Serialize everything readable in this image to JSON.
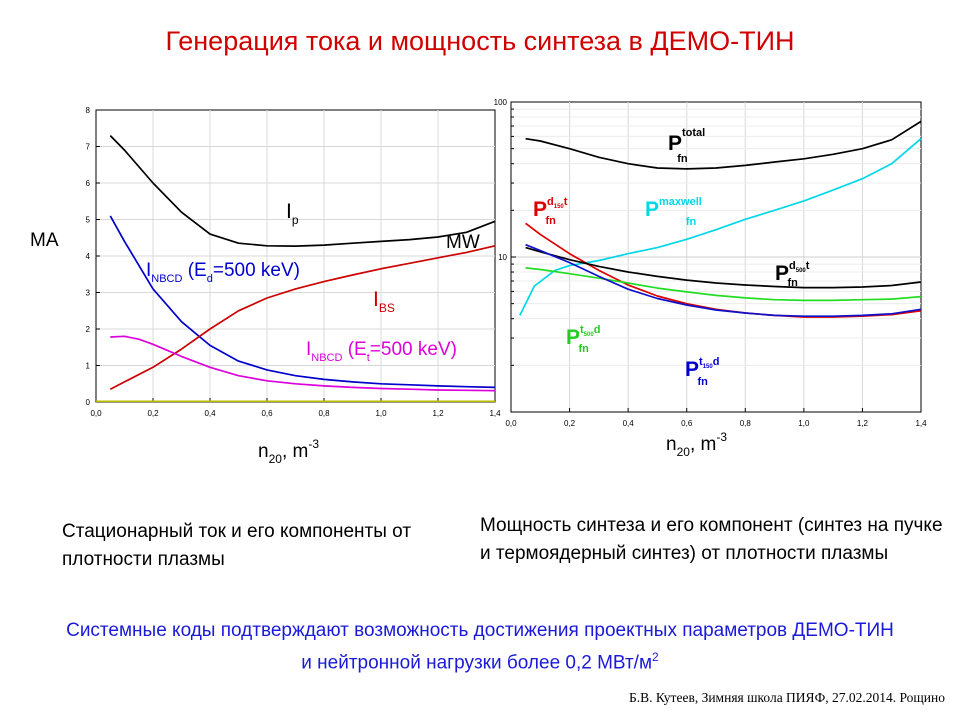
{
  "slide": {
    "title": "Генерация тока и мощность синтеза в ДЕМО-ТИН",
    "caption_left": "Стационарный ток и его компоненты от плотности плазмы",
    "caption_right": "Мощность синтеза и его компонент (синтез на пучке и термоядерный синтез) от плотности плазмы",
    "conclusion": "Системные коды подтверждают возможность достижения проектных параметров ДЕМО-ТИН и нейтронной нагрузки более 0,2 МВт/м",
    "conclusion_sup": "2",
    "footer": "Б.В. Кутеев, Зимняя школа ПИЯФ, 27.02.2014. Рощино"
  },
  "chart_data": [
    {
      "type": "line",
      "y_unit": "MA",
      "x_axis_label": {
        "main": "n",
        "sub": "20",
        "rest": ", m",
        "sup": "-3"
      },
      "xlim": [
        0,
        1.4
      ],
      "ylim": [
        0,
        8
      ],
      "x_ticks": [
        "0,0",
        "0,2",
        "0,4",
        "0,6",
        "0,8",
        "1,0",
        "1,2",
        "1,4"
      ],
      "y_ticks": [
        "0",
        "1",
        "2",
        "3",
        "4",
        "5",
        "6",
        "7",
        "8"
      ],
      "grid": true,
      "series": [
        {
          "name": "Ip",
          "color": "#000000",
          "x": [
            0.05,
            0.1,
            0.2,
            0.3,
            0.4,
            0.5,
            0.6,
            0.7,
            0.8,
            0.9,
            1.0,
            1.1,
            1.2,
            1.3,
            1.4
          ],
          "y": [
            7.3,
            6.9,
            6.0,
            5.2,
            4.6,
            4.35,
            4.28,
            4.27,
            4.3,
            4.35,
            4.4,
            4.45,
            4.52,
            4.65,
            4.95
          ]
        },
        {
          "name": "INBCD (Ed=500 keV)",
          "color": "#0000cc",
          "x": [
            0.05,
            0.1,
            0.2,
            0.3,
            0.4,
            0.5,
            0.6,
            0.7,
            0.8,
            0.9,
            1.0,
            1.1,
            1.2,
            1.3,
            1.4
          ],
          "y": [
            5.1,
            4.4,
            3.1,
            2.2,
            1.55,
            1.12,
            0.88,
            0.72,
            0.62,
            0.55,
            0.5,
            0.47,
            0.44,
            0.42,
            0.4
          ]
        },
        {
          "name": "IBS",
          "color": "#cc0000",
          "x": [
            0.05,
            0.1,
            0.2,
            0.3,
            0.4,
            0.5,
            0.6,
            0.7,
            0.8,
            0.9,
            1.0,
            1.1,
            1.2,
            1.3,
            1.4
          ],
          "y": [
            0.35,
            0.55,
            0.95,
            1.45,
            2.0,
            2.5,
            2.85,
            3.1,
            3.3,
            3.48,
            3.65,
            3.8,
            3.95,
            4.1,
            4.28
          ]
        },
        {
          "name": "INBCD (Et=500 keV)",
          "color": "#dd00dd",
          "x": [
            0.05,
            0.1,
            0.15,
            0.2,
            0.3,
            0.4,
            0.5,
            0.6,
            0.7,
            0.8,
            0.9,
            1.0,
            1.1,
            1.2,
            1.3,
            1.4
          ],
          "y": [
            1.78,
            1.8,
            1.72,
            1.58,
            1.25,
            0.95,
            0.72,
            0.58,
            0.5,
            0.44,
            0.4,
            0.37,
            0.35,
            0.33,
            0.32,
            0.31
          ]
        },
        {
          "name": "",
          "color": "#bbbb00",
          "x": [
            0.0,
            1.4
          ],
          "y": [
            0.02,
            0.02
          ]
        }
      ],
      "labels": [
        {
          "main": "I",
          "sub": "p",
          "color": "#000000"
        },
        {
          "main": "I",
          "sub": "NBCD",
          "rest": " (E",
          "sub2": "d",
          "rest2": "=500 keV)",
          "color": "#0000cc"
        },
        {
          "main": "I",
          "sub": "BS",
          "color": "#cc0000"
        },
        {
          "main": "I",
          "sub": "NBCD",
          "rest": " (E",
          "sub2": "t",
          "rest2": "=500 keV)",
          "color": "#dd00dd"
        }
      ]
    },
    {
      "type": "line",
      "y_unit": "MW",
      "y_scale": "log",
      "x_axis_label": {
        "main": "n",
        "sub": "20",
        "rest": ", m",
        "sup": "-3"
      },
      "xlim": [
        0,
        1.4
      ],
      "ylim": [
        1,
        100
      ],
      "x_ticks": [
        "0,0",
        "0,2",
        "0,4",
        "0,6",
        "0,8",
        "1,0",
        "1,2",
        "1,4"
      ],
      "y_ticks": [
        "10",
        "100"
      ],
      "grid": true,
      "series": [
        {
          "name": "P total fn",
          "color": "#000000",
          "x": [
            0.05,
            0.1,
            0.2,
            0.3,
            0.4,
            0.5,
            0.6,
            0.7,
            0.8,
            0.9,
            1.0,
            1.1,
            1.2,
            1.3,
            1.4
          ],
          "y": [
            58,
            56,
            50,
            44,
            40,
            37.5,
            37,
            37.5,
            39,
            41,
            43,
            46,
            50,
            57,
            75
          ]
        },
        {
          "name": "P maxwell fn",
          "color": "#00d8e8",
          "x": [
            0.03,
            0.08,
            0.15,
            0.2,
            0.3,
            0.4,
            0.5,
            0.6,
            0.7,
            0.8,
            0.9,
            1.0,
            1.1,
            1.2,
            1.3,
            1.4
          ],
          "y": [
            4.2,
            6.5,
            8.2,
            8.8,
            9.5,
            10.5,
            11.5,
            13,
            15,
            17.5,
            20,
            23,
            27,
            32,
            40,
            58
          ]
        },
        {
          "name": "P d150 t fn",
          "color": "#dd0000",
          "x": [
            0.05,
            0.1,
            0.2,
            0.3,
            0.4,
            0.5,
            0.6,
            0.7,
            0.8,
            0.9,
            1.0,
            1.1,
            1.2,
            1.3,
            1.4
          ],
          "y": [
            16.5,
            14,
            10.5,
            8.2,
            6.6,
            5.6,
            5.0,
            4.6,
            4.35,
            4.2,
            4.1,
            4.1,
            4.15,
            4.25,
            4.5
          ]
        },
        {
          "name": "P d500 t fn",
          "color": "#000000",
          "x": [
            0.05,
            0.1,
            0.2,
            0.3,
            0.4,
            0.5,
            0.6,
            0.7,
            0.8,
            0.9,
            1.0,
            1.1,
            1.2,
            1.3,
            1.4
          ],
          "y": [
            11.5,
            10.8,
            9.6,
            8.7,
            8.0,
            7.5,
            7.1,
            6.8,
            6.6,
            6.45,
            6.35,
            6.35,
            6.4,
            6.55,
            6.9
          ]
        },
        {
          "name": "P t500 d fn",
          "color": "#22dd22",
          "x": [
            0.05,
            0.1,
            0.2,
            0.3,
            0.4,
            0.5,
            0.6,
            0.7,
            0.8,
            0.9,
            1.0,
            1.1,
            1.2,
            1.3,
            1.4
          ],
          "y": [
            8.5,
            8.3,
            7.8,
            7.3,
            6.8,
            6.3,
            5.95,
            5.65,
            5.45,
            5.3,
            5.25,
            5.25,
            5.3,
            5.35,
            5.55
          ]
        },
        {
          "name": "P t150 d fn",
          "color": "#1010cc",
          "x": [
            0.05,
            0.1,
            0.2,
            0.3,
            0.4,
            0.5,
            0.6,
            0.7,
            0.8,
            0.9,
            1.0,
            1.1,
            1.2,
            1.3,
            1.4
          ],
          "y": [
            12,
            11,
            9.2,
            7.5,
            6.2,
            5.4,
            4.9,
            4.55,
            4.35,
            4.2,
            4.15,
            4.15,
            4.2,
            4.3,
            4.6
          ]
        }
      ],
      "labels": [
        {
          "main": "P",
          "sup": "total",
          "sub": "fn",
          "color": "#000000"
        },
        {
          "main": "P",
          "sup": "d",
          "supsub": "150",
          "sup2": "t",
          "sub": "fn",
          "color": "#dd0000"
        },
        {
          "main": "P",
          "sup": "maxwell",
          "sub": "fn",
          "color": "#00d8e8"
        },
        {
          "main": "P",
          "sup": "d",
          "supsub": "500",
          "sup2": "t",
          "sub": "fn",
          "color": "#000000"
        },
        {
          "main": "P",
          "sup": "t",
          "supsub": "500",
          "sup2": "d",
          "sub": "fn",
          "color": "#22cc22"
        },
        {
          "main": "P",
          "sup": "t",
          "supsub": "150",
          "sup2": "d",
          "sub": "fn",
          "color": "#0000cc"
        }
      ]
    }
  ]
}
